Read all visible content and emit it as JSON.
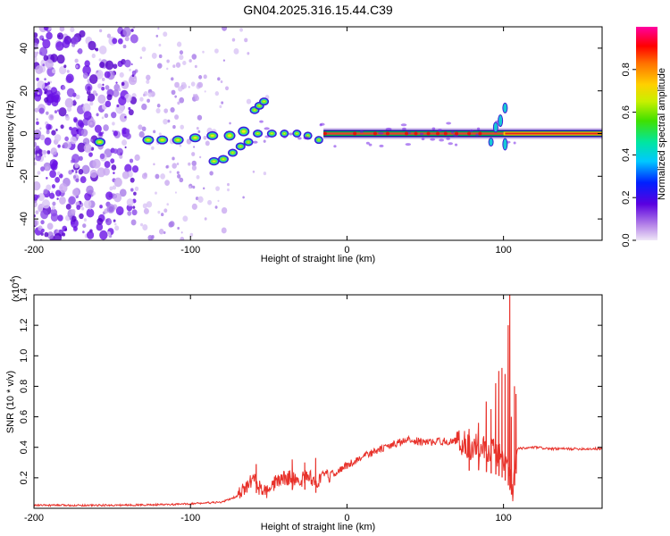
{
  "title": "GN04.2025.316.15.44.C39",
  "chart_data": [
    {
      "type": "heatmap",
      "xlabel": "Height of straight line (km)",
      "ylabel": "Frequency (Hz)",
      "xlim": [
        -200,
        163
      ],
      "ylim": [
        -50,
        50
      ],
      "x_ticks": [
        -200,
        -100,
        0,
        100
      ],
      "y_ticks": [
        -40,
        -20,
        0,
        20,
        40
      ],
      "colorbar": {
        "label": "Normalized spectral amplitude",
        "range": [
          0,
          1
        ],
        "ticks": [
          "0.0",
          "0.2",
          "0.4",
          "0.6",
          "0.8"
        ],
        "colormap": "rainbow (violet-blue-cyan-green-yellow-red-magenta)"
      },
      "ridges": [
        {
          "x_start": -160,
          "x_end": 163,
          "frequency": 0,
          "description": "main ridge"
        },
        {
          "x_start": -88,
          "x_end": -65,
          "frequency_start": -13,
          "frequency_end": -8
        },
        {
          "x_start": -60,
          "x_end": -52,
          "frequency_start": 11,
          "frequency_end": 16
        }
      ]
    },
    {
      "type": "line",
      "xlabel": "Height of straight line (km)",
      "ylabel": "SNR (10 * v/v)",
      "y_multiplier": "(x10^4)",
      "xlim": [
        -200,
        163
      ],
      "ylim": [
        0,
        1.4
      ],
      "x_ticks": [
        -200,
        -100,
        0,
        100
      ],
      "y_ticks": [
        "0.2",
        "0.4",
        "0.6",
        "0.8",
        "1.0",
        "1.2",
        "1.4"
      ],
      "series_color": "#e8322b",
      "envelope": {
        "x": [
          -200,
          -150,
          -110,
          -80,
          -70,
          -63,
          -60,
          -55,
          -50,
          -45,
          -40,
          -35,
          -30,
          -25,
          -20,
          -15,
          -10,
          0,
          10,
          20,
          30,
          40,
          50,
          60,
          70,
          75,
          80,
          85,
          90,
          95,
          100,
          103,
          105,
          106,
          108,
          110,
          120,
          130,
          140,
          150,
          163
        ],
        "y": [
          0.02,
          0.02,
          0.025,
          0.04,
          0.08,
          0.15,
          0.2,
          0.12,
          0.1,
          0.18,
          0.2,
          0.2,
          0.18,
          0.22,
          0.17,
          0.2,
          0.22,
          0.28,
          0.34,
          0.38,
          0.42,
          0.45,
          0.43,
          0.44,
          0.44,
          0.43,
          0.4,
          0.42,
          0.39,
          0.37,
          0.33,
          0.25,
          0.15,
          0.12,
          0.38,
          0.39,
          0.4,
          0.39,
          0.39,
          0.39,
          0.39
        ]
      },
      "spikes": [
        {
          "x": -58,
          "y": 0.29
        },
        {
          "x": -35,
          "y": 0.32
        },
        {
          "x": -27,
          "y": 0.3
        },
        {
          "x": -20,
          "y": 0.33
        },
        {
          "x": 78,
          "y": 0.52
        },
        {
          "x": 84,
          "y": 0.56
        },
        {
          "x": 89,
          "y": 0.7
        },
        {
          "x": 92,
          "y": 0.65
        },
        {
          "x": 95,
          "y": 0.82
        },
        {
          "x": 97,
          "y": 0.9
        },
        {
          "x": 99,
          "y": 0.92
        },
        {
          "x": 101,
          "y": 0.88
        },
        {
          "x": 103,
          "y": 1.2
        },
        {
          "x": 104,
          "y": 1.42
        },
        {
          "x": 105,
          "y": 0.6
        },
        {
          "x": 107,
          "y": 0.8
        },
        {
          "x": 108,
          "y": 0.75
        }
      ]
    }
  ]
}
